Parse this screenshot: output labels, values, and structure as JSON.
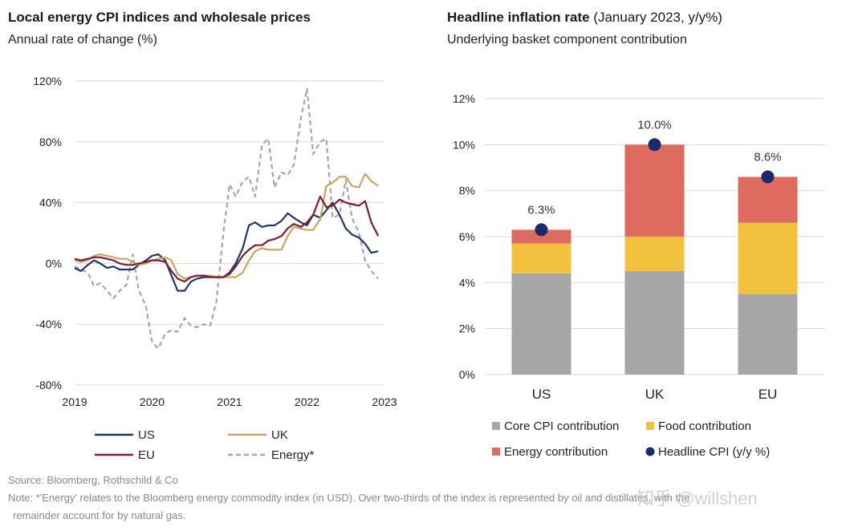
{
  "left": {
    "title": "Local energy CPI indices and wholesale prices",
    "subtitle": "Annual rate of change (%)"
  },
  "right": {
    "title_bold": "Headline inflation rate",
    "title_light": " (January 2023, y/y%)",
    "subtitle": "Underlying basket component contribution"
  },
  "footer": {
    "source": "Source: Bloomberg, Rothschild & Co",
    "note_line1": "Note: *'Energy' relates to the Bloomberg energy commodity index (in USD). Over two-thirds of the index is represented by oil and distillates, with the",
    "note_line2": "remainder account for by natural gas."
  },
  "watermark": "知乎 @willshen",
  "colors": {
    "US": "#1f3864",
    "UK": "#c9a464",
    "EU": "#7b1e34",
    "Energy": "#a6a6a6",
    "core": "#a6a6a6",
    "food": "#f2c13e",
    "energy_contrib": "#dd6b60",
    "headline": "#1b2a6b",
    "grid": "#d9d9d9"
  },
  "chart_data": [
    {
      "type": "line",
      "title": "Local energy CPI indices and wholesale prices",
      "subtitle": "Annual rate of change (%)",
      "ylim": [
        -80,
        120
      ],
      "yticks": [
        -80,
        -40,
        0,
        40,
        80,
        120
      ],
      "ytick_labels": [
        "-80%",
        "-40%",
        "0%",
        "40%",
        "80%",
        "120%"
      ],
      "xlim": [
        2019,
        2023
      ],
      "xticks": [
        2019,
        2020,
        2021,
        2022,
        2023
      ],
      "xtick_labels": [
        "2019",
        "2020",
        "2021",
        "2022",
        "2023"
      ],
      "legend_position": "bottom",
      "series": [
        {
          "name": "US",
          "style": "solid",
          "points": [
            [
              2019.0,
              -3
            ],
            [
              2019.08,
              -5
            ],
            [
              2019.17,
              -1
            ],
            [
              2019.25,
              2
            ],
            [
              2019.33,
              0
            ],
            [
              2019.42,
              -3
            ],
            [
              2019.5,
              -2
            ],
            [
              2019.58,
              -4
            ],
            [
              2019.67,
              -4
            ],
            [
              2019.75,
              -4
            ],
            [
              2019.83,
              -1
            ],
            [
              2019.92,
              2
            ],
            [
              2020.0,
              5
            ],
            [
              2020.08,
              6
            ],
            [
              2020.17,
              2
            ],
            [
              2020.25,
              -8
            ],
            [
              2020.33,
              -18
            ],
            [
              2020.42,
              -18
            ],
            [
              2020.5,
              -12
            ],
            [
              2020.58,
              -10
            ],
            [
              2020.67,
              -9
            ],
            [
              2020.75,
              -9
            ],
            [
              2020.83,
              -9
            ],
            [
              2020.92,
              -9
            ],
            [
              2021.0,
              -6
            ],
            [
              2021.08,
              0
            ],
            [
              2021.17,
              10
            ],
            [
              2021.25,
              25
            ],
            [
              2021.33,
              27
            ],
            [
              2021.42,
              24
            ],
            [
              2021.5,
              25
            ],
            [
              2021.58,
              25
            ],
            [
              2021.67,
              28
            ],
            [
              2021.75,
              33
            ],
            [
              2021.83,
              30
            ],
            [
              2021.92,
              27
            ],
            [
              2022.0,
              25
            ],
            [
              2022.08,
              32
            ],
            [
              2022.17,
              30
            ],
            [
              2022.25,
              35
            ],
            [
              2022.33,
              40
            ],
            [
              2022.42,
              32
            ],
            [
              2022.5,
              23
            ],
            [
              2022.58,
              19
            ],
            [
              2022.67,
              17
            ],
            [
              2022.75,
              13
            ],
            [
              2022.83,
              7
            ],
            [
              2022.92,
              8
            ]
          ]
        },
        {
          "name": "UK",
          "style": "solid",
          "points": [
            [
              2019.0,
              2
            ],
            [
              2019.08,
              1
            ],
            [
              2019.17,
              2
            ],
            [
              2019.25,
              5
            ],
            [
              2019.33,
              6
            ],
            [
              2019.42,
              5
            ],
            [
              2019.5,
              4
            ],
            [
              2019.58,
              3
            ],
            [
              2019.67,
              3
            ],
            [
              2019.75,
              1
            ],
            [
              2019.83,
              -1
            ],
            [
              2019.92,
              0
            ],
            [
              2020.0,
              2
            ],
            [
              2020.08,
              3
            ],
            [
              2020.17,
              4
            ],
            [
              2020.25,
              2
            ],
            [
              2020.33,
              -7
            ],
            [
              2020.42,
              -10
            ],
            [
              2020.5,
              -9
            ],
            [
              2020.58,
              -8
            ],
            [
              2020.67,
              -8
            ],
            [
              2020.75,
              -8
            ],
            [
              2020.83,
              -9
            ],
            [
              2020.92,
              -9
            ],
            [
              2021.0,
              -9
            ],
            [
              2021.08,
              -9
            ],
            [
              2021.17,
              -6
            ],
            [
              2021.25,
              2
            ],
            [
              2021.33,
              8
            ],
            [
              2021.42,
              10
            ],
            [
              2021.5,
              9
            ],
            [
              2021.58,
              9
            ],
            [
              2021.67,
              9
            ],
            [
              2021.75,
              18
            ],
            [
              2021.83,
              24
            ],
            [
              2021.92,
              23
            ],
            [
              2022.0,
              22
            ],
            [
              2022.08,
              22
            ],
            [
              2022.17,
              29
            ],
            [
              2022.25,
              51
            ],
            [
              2022.33,
              53
            ],
            [
              2022.42,
              57
            ],
            [
              2022.5,
              57
            ],
            [
              2022.58,
              51
            ],
            [
              2022.67,
              50
            ],
            [
              2022.75,
              59
            ],
            [
              2022.83,
              54
            ],
            [
              2022.92,
              51
            ]
          ]
        },
        {
          "name": "EU",
          "style": "solid",
          "points": [
            [
              2019.0,
              3
            ],
            [
              2019.08,
              2
            ],
            [
              2019.17,
              3
            ],
            [
              2019.25,
              4
            ],
            [
              2019.33,
              4
            ],
            [
              2019.42,
              3
            ],
            [
              2019.5,
              2
            ],
            [
              2019.58,
              0
            ],
            [
              2019.67,
              -1
            ],
            [
              2019.75,
              -1
            ],
            [
              2019.83,
              0
            ],
            [
              2019.92,
              1
            ],
            [
              2020.0,
              2
            ],
            [
              2020.08,
              2
            ],
            [
              2020.17,
              1
            ],
            [
              2020.25,
              -5
            ],
            [
              2020.33,
              -10
            ],
            [
              2020.42,
              -12
            ],
            [
              2020.5,
              -9
            ],
            [
              2020.58,
              -8
            ],
            [
              2020.67,
              -8
            ],
            [
              2020.75,
              -9
            ],
            [
              2020.83,
              -9
            ],
            [
              2020.92,
              -9
            ],
            [
              2021.0,
              -7
            ],
            [
              2021.08,
              -2
            ],
            [
              2021.17,
              5
            ],
            [
              2021.25,
              9
            ],
            [
              2021.33,
              12
            ],
            [
              2021.42,
              12
            ],
            [
              2021.5,
              15
            ],
            [
              2021.58,
              16
            ],
            [
              2021.67,
              18
            ],
            [
              2021.75,
              23
            ],
            [
              2021.83,
              26
            ],
            [
              2021.92,
              24
            ],
            [
              2022.0,
              27
            ],
            [
              2022.08,
              32
            ],
            [
              2022.17,
              44
            ],
            [
              2022.25,
              37
            ],
            [
              2022.33,
              38
            ],
            [
              2022.42,
              42
            ],
            [
              2022.5,
              40
            ],
            [
              2022.58,
              39
            ],
            [
              2022.67,
              38
            ],
            [
              2022.75,
              41
            ],
            [
              2022.83,
              27
            ],
            [
              2022.92,
              18
            ]
          ]
        },
        {
          "name": "Energy*",
          "style": "dashed",
          "points": [
            [
              2019.0,
              -2
            ],
            [
              2019.08,
              -4
            ],
            [
              2019.17,
              -6
            ],
            [
              2019.25,
              -15
            ],
            [
              2019.33,
              -13
            ],
            [
              2019.42,
              -18
            ],
            [
              2019.5,
              -23
            ],
            [
              2019.58,
              -18
            ],
            [
              2019.67,
              -14
            ],
            [
              2019.75,
              6
            ],
            [
              2019.83,
              -18
            ],
            [
              2019.92,
              -28
            ],
            [
              2020.0,
              -52
            ],
            [
              2020.08,
              -56
            ],
            [
              2020.17,
              -46
            ],
            [
              2020.25,
              -44
            ],
            [
              2020.33,
              -45
            ],
            [
              2020.42,
              -36
            ],
            [
              2020.5,
              -41
            ],
            [
              2020.58,
              -42
            ],
            [
              2020.67,
              -40
            ],
            [
              2020.75,
              -41
            ],
            [
              2020.83,
              -25
            ],
            [
              2020.92,
              20
            ],
            [
              2021.0,
              52
            ],
            [
              2021.08,
              44
            ],
            [
              2021.17,
              54
            ],
            [
              2021.25,
              57
            ],
            [
              2021.33,
              44
            ],
            [
              2021.42,
              78
            ],
            [
              2021.5,
              82
            ],
            [
              2021.58,
              50
            ],
            [
              2021.67,
              60
            ],
            [
              2021.75,
              58
            ],
            [
              2021.83,
              65
            ],
            [
              2021.92,
              95
            ],
            [
              2022.0,
              115
            ],
            [
              2022.08,
              72
            ],
            [
              2022.17,
              80
            ],
            [
              2022.25,
              82
            ],
            [
              2022.33,
              30
            ],
            [
              2022.42,
              32
            ],
            [
              2022.5,
              55
            ],
            [
              2022.58,
              30
            ],
            [
              2022.67,
              20
            ],
            [
              2022.75,
              2
            ],
            [
              2022.83,
              -5
            ],
            [
              2022.92,
              -10
            ]
          ]
        }
      ]
    },
    {
      "type": "bar",
      "stacked": true,
      "title": "Headline inflation rate (January 2023, y/y%)",
      "subtitle": "Underlying basket component contribution",
      "categories": [
        "US",
        "UK",
        "EU"
      ],
      "ylim": [
        0,
        12
      ],
      "yticks": [
        0,
        2,
        4,
        6,
        8,
        10,
        12
      ],
      "ytick_labels": [
        "0%",
        "2%",
        "4%",
        "6%",
        "8%",
        "10%",
        "12%"
      ],
      "legend_position": "bottom",
      "series": [
        {
          "name": "Core CPI contribution",
          "values": [
            4.4,
            4.5,
            3.5
          ]
        },
        {
          "name": "Food contribution",
          "values": [
            1.3,
            1.5,
            3.1
          ]
        },
        {
          "name": "Energy contribution",
          "values": [
            0.6,
            4.0,
            2.0
          ]
        }
      ],
      "markers": {
        "name": "Headline CPI (y/y %)",
        "values": [
          6.3,
          10.0,
          8.6
        ],
        "labels": [
          "6.3%",
          "10.0%",
          "8.6%"
        ]
      }
    }
  ]
}
